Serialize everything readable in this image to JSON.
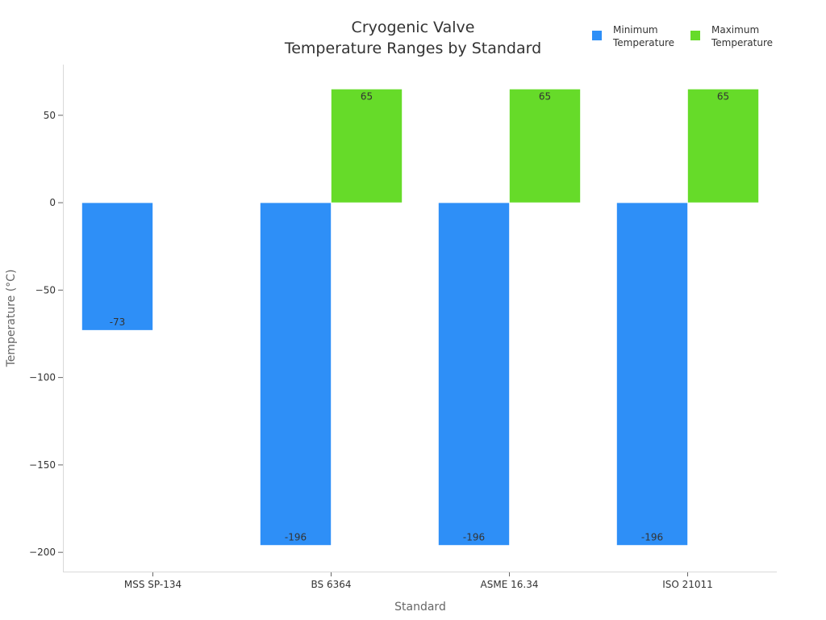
{
  "chart_data": {
    "type": "bar",
    "title": [
      "Cryogenic Valve",
      "Temperature Ranges by Standard"
    ],
    "xlabel": "Standard",
    "ylabel": "Temperature (°C)",
    "categories": [
      "MSS SP-134",
      "BS 6364",
      "ASME 16.34",
      "ISO 21011"
    ],
    "series": [
      {
        "name": [
          "Minimum",
          "Temperature"
        ],
        "values": [
          -73,
          -196,
          -196,
          -196
        ],
        "color": "#2e8ff7"
      },
      {
        "name": [
          "Maximum",
          "Temperature"
        ],
        "values": [
          null,
          65,
          65,
          65
        ],
        "color": "#66db29"
      }
    ],
    "ylim": [
      -211,
      79
    ],
    "yticks": [
      50,
      0,
      -50,
      -100,
      -150,
      -200
    ],
    "ytick_labels": [
      "50",
      "0",
      "−50",
      "−100",
      "−150",
      "−200"
    ],
    "grid": false,
    "legend_position": "top-right"
  }
}
